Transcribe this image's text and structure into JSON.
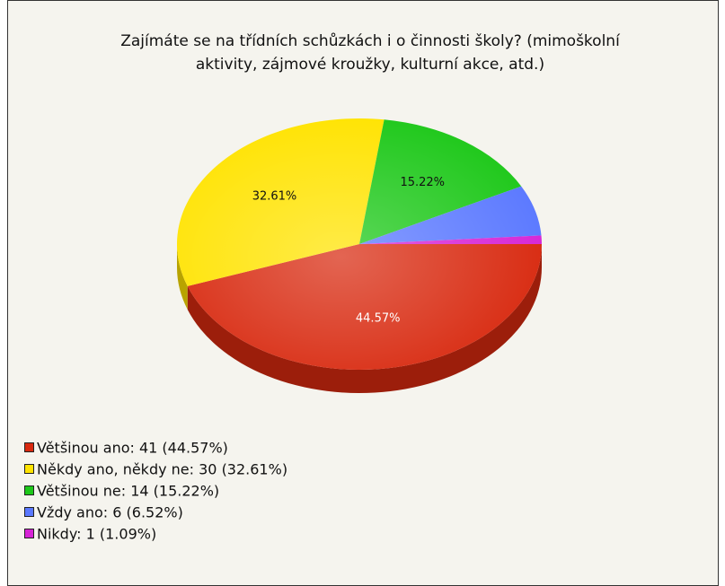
{
  "chart_data": {
    "type": "pie",
    "title": [
      "Zajímáte se na třídních schůzkách i o činnosti školy? (mimoškolní",
      "aktivity, zájmové kroužky, kulturní akce, atd.)"
    ],
    "categories": [
      "Většinou ano: 41 (44.57%)",
      "Někdy ano, někdy ne: 30 (32.61%)",
      "Většinou ne: 14 (15.22%)",
      "Vždy ano: 6 (6.52%)",
      "Nikdy: 1 (1.09%)"
    ],
    "values": [
      44.57,
      32.61,
      15.22,
      6.52,
      1.09
    ],
    "value_labels": [
      "44.57%",
      "32.61%",
      "15.22%",
      null,
      null
    ],
    "colors": [
      "#d8290f",
      "#ffe300",
      "#1ec81a",
      "#5a78ff",
      "#d624d6"
    ],
    "legend": "bottom-left"
  }
}
